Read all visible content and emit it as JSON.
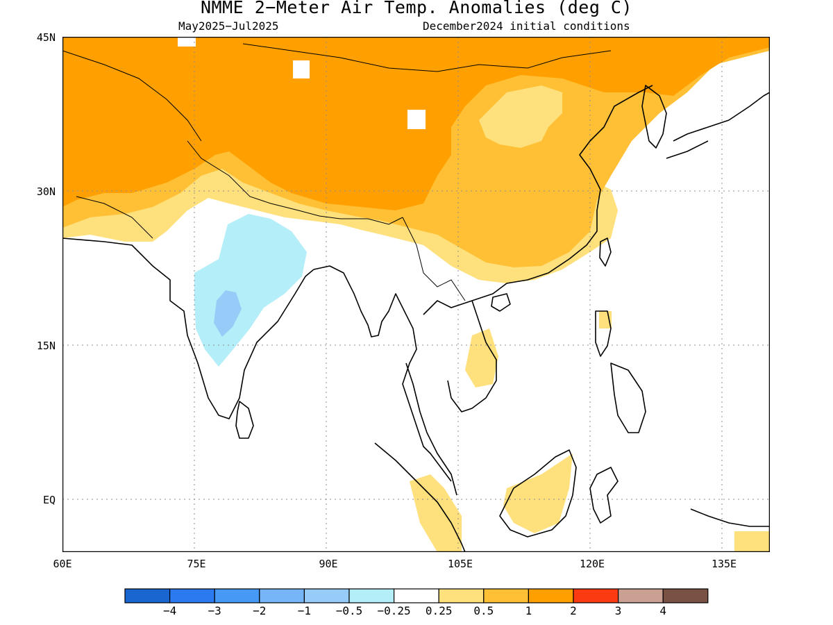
{
  "title": "NMME 2−Meter Air Temp. Anomalies (deg C)",
  "subtitle_left": "May2025−Jul2025",
  "subtitle_right": "December2024 initial conditions",
  "lat_labels": [
    "45N",
    "30N",
    "15N",
    "EQ"
  ],
  "lon_labels": [
    "60E",
    "75E",
    "90E",
    "105E",
    "120E",
    "135E"
  ],
  "colorbar": {
    "labels": [
      "−4",
      "−3",
      "−2",
      "−1",
      "−0.5",
      "−0.25",
      "0.25",
      "0.5",
      "1",
      "2",
      "3",
      "4"
    ],
    "colors": [
      "#1a66d0",
      "#2b7aef",
      "#4699f5",
      "#76b5f7",
      "#98ccf8",
      "#b4eef8",
      "#ffffff",
      "#fee17c",
      "#ffc035",
      "#ff9f00",
      "#fb3a12",
      "#caa093",
      "#7a5244"
    ]
  }
}
